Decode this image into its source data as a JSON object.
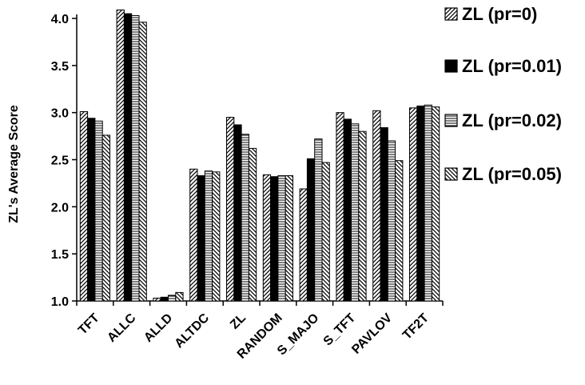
{
  "chart_data": {
    "type": "bar",
    "title": "",
    "xlabel": "",
    "ylabel": "ZL's Average Score",
    "ylim": [
      1.0,
      4.1
    ],
    "yticks": [
      "1.0",
      "1.5",
      "2.0",
      "2.5",
      "3.0",
      "3.5",
      "4.0"
    ],
    "grid": false,
    "legend_position": "right",
    "categories": [
      "TFT",
      "ALLC",
      "ALLD",
      "ALTDC",
      "ZL",
      "RANDOM",
      "S_MAJO",
      "S_TFT",
      "PAVLOV",
      "TF2T"
    ],
    "series": [
      {
        "name": "ZL (pr=0)",
        "pattern": "diagonal-up",
        "values": [
          3.01,
          4.09,
          1.03,
          2.4,
          2.95,
          2.34,
          2.19,
          3.0,
          3.02,
          3.05
        ]
      },
      {
        "name": "ZL (pr=0.01)",
        "pattern": "solid-black",
        "values": [
          2.94,
          4.05,
          1.04,
          2.33,
          2.87,
          2.32,
          2.51,
          2.93,
          2.84,
          3.07
        ]
      },
      {
        "name": "ZL (pr=0.02)",
        "pattern": "horizontal",
        "values": [
          2.91,
          4.03,
          1.06,
          2.38,
          2.77,
          2.33,
          2.72,
          2.88,
          2.7,
          3.08
        ]
      },
      {
        "name": "ZL (pr=0.05)",
        "pattern": "diagonal-down",
        "values": [
          2.76,
          3.96,
          1.09,
          2.37,
          2.62,
          2.33,
          2.47,
          2.8,
          2.49,
          3.06
        ]
      }
    ]
  }
}
